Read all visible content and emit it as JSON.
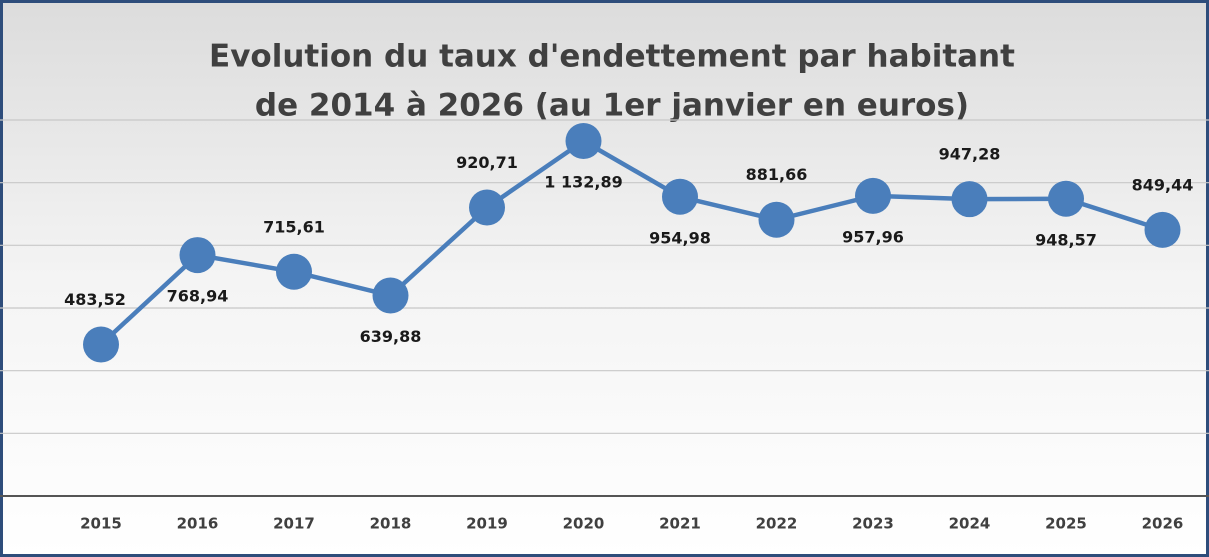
{
  "chart_data": {
    "type": "line",
    "title": [
      "Evolution du taux d'endettement par habitant",
      "de 2014 à 2026 (au 1er janvier en euros)"
    ],
    "categories": [
      "2015",
      "2016",
      "2017",
      "2018",
      "2019",
      "2020",
      "2021",
      "2022",
      "2023",
      "2024",
      "2025",
      "2026"
    ],
    "values": [
      483.52,
      768.94,
      715.61,
      639.88,
      920.71,
      1132.89,
      954.98,
      881.66,
      957.96,
      947.28,
      948.57,
      849.44
    ],
    "value_labels": [
      "483,52",
      "768,94",
      "715,61",
      "639,88",
      "920,71",
      "1 132,89",
      "954,98",
      "881,66",
      "957,96",
      "947,28",
      "948,57",
      "849,44"
    ],
    "color": "#4a7ebb",
    "ylim": [
      0,
      1200
    ],
    "yticks": [
      0,
      200,
      400,
      600,
      800,
      1000,
      1200
    ],
    "grid": true
  }
}
